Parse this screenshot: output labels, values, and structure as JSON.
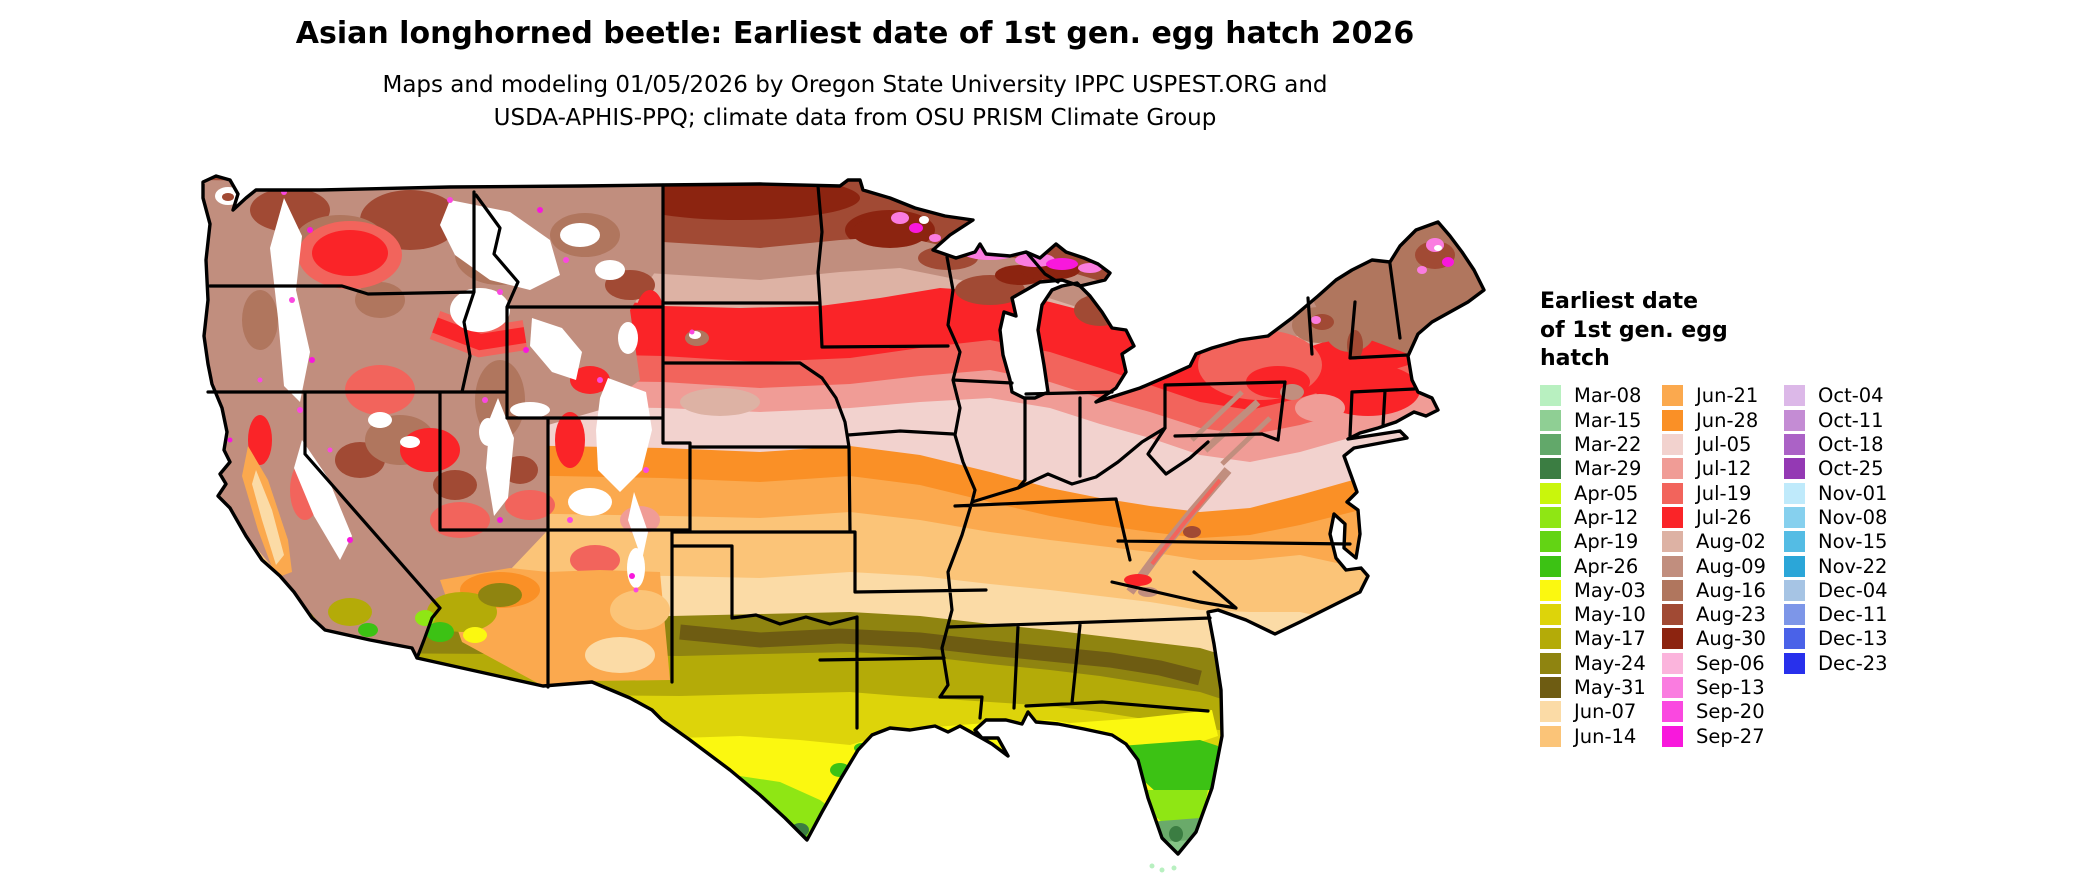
{
  "title": "Asian longhorned beetle: Earliest date of 1st gen. egg hatch 2026",
  "subtitle_line1": "Maps and modeling 01/05/2026 by Oregon State University IPPC USPEST.ORG and",
  "subtitle_line2": "USDA-APHIS-PPQ; climate data from OSU PRISM Climate Group",
  "legend": {
    "title_lines": [
      "Earliest date",
      "of 1st gen. egg",
      "hatch"
    ],
    "columns": [
      [
        {
          "label": "Mar-08",
          "color": "#b8f0c0"
        },
        {
          "label": "Mar-15",
          "color": "#8fcf94"
        },
        {
          "label": "Mar-22",
          "color": "#62a86a"
        },
        {
          "label": "Mar-29",
          "color": "#3b7d42"
        },
        {
          "label": "Apr-05",
          "color": "#c9f60c"
        },
        {
          "label": "Apr-12",
          "color": "#8fe614"
        },
        {
          "label": "Apr-19",
          "color": "#63d414"
        },
        {
          "label": "Apr-26",
          "color": "#3cc214"
        },
        {
          "label": "May-03",
          "color": "#fbf810"
        },
        {
          "label": "May-10",
          "color": "#ddd40a"
        },
        {
          "label": "May-17",
          "color": "#b4ab08"
        },
        {
          "label": "May-24",
          "color": "#8f8410"
        },
        {
          "label": "May-31",
          "color": "#6e5c12"
        },
        {
          "label": "Jun-07",
          "color": "#fbdba6"
        },
        {
          "label": "Jun-14",
          "color": "#fbc478"
        }
      ],
      [
        {
          "label": "Jun-21",
          "color": "#fba94e"
        },
        {
          "label": "Jun-28",
          "color": "#fa9026"
        },
        {
          "label": "Jul-05",
          "color": "#f2d2ce"
        },
        {
          "label": "Jul-12",
          "color": "#f09c96"
        },
        {
          "label": "Jul-19",
          "color": "#f2645c"
        },
        {
          "label": "Jul-26",
          "color": "#fa2428"
        },
        {
          "label": "Aug-02",
          "color": "#ddb2a4"
        },
        {
          "label": "Aug-09",
          "color": "#c18e7e"
        },
        {
          "label": "Aug-16",
          "color": "#b0765e"
        },
        {
          "label": "Aug-23",
          "color": "#a14a34"
        },
        {
          "label": "Aug-30",
          "color": "#8c2410"
        },
        {
          "label": "Sep-06",
          "color": "#fbb4dc"
        },
        {
          "label": "Sep-13",
          "color": "#fa7ce0"
        },
        {
          "label": "Sep-20",
          "color": "#fa48e0"
        },
        {
          "label": "Sep-27",
          "color": "#f818dc"
        }
      ],
      [
        {
          "label": "Oct-04",
          "color": "#dcb8e8"
        },
        {
          "label": "Oct-11",
          "color": "#c48cd4"
        },
        {
          "label": "Oct-18",
          "color": "#ab62c6"
        },
        {
          "label": "Oct-25",
          "color": "#9439b4"
        },
        {
          "label": "Nov-01",
          "color": "#bfeafb"
        },
        {
          "label": "Nov-08",
          "color": "#86d0ee"
        },
        {
          "label": "Nov-15",
          "color": "#54bce4"
        },
        {
          "label": "Nov-22",
          "color": "#2ba6d8"
        },
        {
          "label": "Dec-04",
          "color": "#a6c4e4"
        },
        {
          "label": "Dec-11",
          "color": "#7d96e8"
        },
        {
          "label": "Dec-13",
          "color": "#4a62e8"
        },
        {
          "label": "Dec-23",
          "color": "#2830ec"
        }
      ]
    ]
  },
  "map_fills": {
    "mar08": "#b8f0c0",
    "mar15": "#85c585",
    "mar22": "#6aaa6a",
    "mar29": "#3b7d42",
    "apr05": "#c9f60c",
    "apr12": "#8fe614",
    "apr19": "#63d414",
    "apr26": "#3cc214",
    "may03": "#fbf810",
    "may10": "#ddd40a",
    "may17": "#b4ab08",
    "may24": "#8f8410",
    "may31": "#6e5c12",
    "jun07": "#fbdba6",
    "jun14": "#fbc478",
    "jun21": "#fba94e",
    "jun28": "#fa9026",
    "jul05": "#f2d2ce",
    "jul12": "#f09c96",
    "jul19": "#f2645c",
    "jul26": "#fa2428",
    "aug02": "#ddb2a4",
    "aug09": "#c18e7e",
    "aug16": "#b0765e",
    "aug23": "#a14a34",
    "aug30": "#8c2410",
    "sep06": "#fbb4dc",
    "sep13": "#fa7ce0",
    "sep20": "#fa48e0",
    "sep27": "#f818dc",
    "white": "#ffffff",
    "outline": "#000000"
  }
}
